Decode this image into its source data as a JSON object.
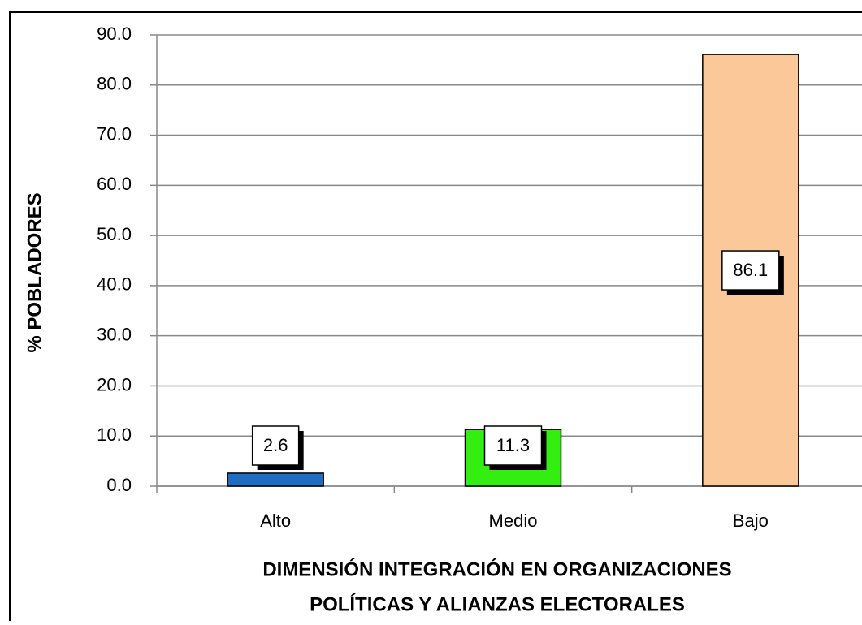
{
  "chart_data": {
    "type": "bar",
    "y_label": "% POBLADORES",
    "x_label": [
      "DIMENSIÓN INTEGRACIÓN EN ORGANIZACIONES",
      "POLÍTICAS Y ALIANZAS ELECTORALES"
    ],
    "categories": [
      "Alto",
      "Medio",
      "Bajo"
    ],
    "values": [
      2.6,
      11.3,
      86.1
    ],
    "colors": [
      "#1f6cc4",
      "#33ee11",
      "#fbc999"
    ],
    "ylim": [
      0,
      90
    ],
    "yticks": [
      {
        "value": 0,
        "label": "0.0"
      },
      {
        "value": 10,
        "label": "10.0"
      },
      {
        "value": 20,
        "label": "20.0"
      },
      {
        "value": 30,
        "label": "30.0"
      },
      {
        "value": 40,
        "label": "40.0"
      },
      {
        "value": 50,
        "label": "50.0"
      },
      {
        "value": 60,
        "label": "60.0"
      },
      {
        "value": 70,
        "label": "70.0"
      },
      {
        "value": 80,
        "label": "80.0"
      },
      {
        "value": 90,
        "label": "90.0"
      }
    ],
    "grid": true
  }
}
